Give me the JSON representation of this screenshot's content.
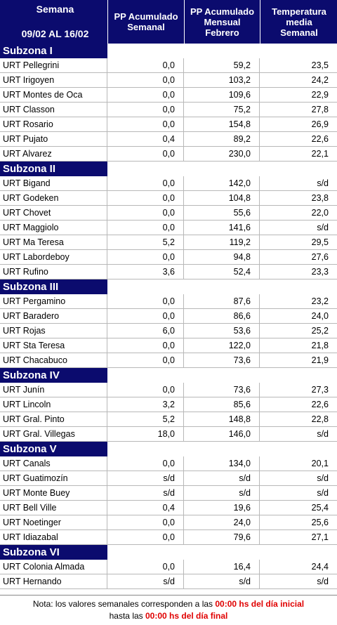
{
  "header": {
    "semana_label": "Semana",
    "semana_range": "09/02 AL 16/02",
    "col_pp_semanal": "PP Acumulado\nSemanal",
    "col_pp_mensual": "PP Acumulado\nMensual\nFebrero",
    "col_temp": "Temperatura\nmedia\nSemanal"
  },
  "zones": [
    {
      "name": "Subzona I",
      "rows": [
        {
          "urt": "URT Pellegrini",
          "pp_sem": "0,0",
          "pp_mes": "59,2",
          "temp": "23,5"
        },
        {
          "urt": "URT Irigoyen",
          "pp_sem": "0,0",
          "pp_mes": "103,2",
          "temp": "24,2"
        },
        {
          "urt": "URT Montes de Oca",
          "pp_sem": "0,0",
          "pp_mes": "109,6",
          "temp": "22,9"
        },
        {
          "urt": "URT Classon",
          "pp_sem": "0,0",
          "pp_mes": "75,2",
          "temp": "27,8"
        },
        {
          "urt": "URT Rosario",
          "pp_sem": "0,0",
          "pp_mes": "154,8",
          "temp": "26,9"
        },
        {
          "urt": "URT Pujato",
          "pp_sem": "0,4",
          "pp_mes": "89,2",
          "temp": "22,6"
        },
        {
          "urt": "URT Alvarez",
          "pp_sem": "0,0",
          "pp_mes": "230,0",
          "temp": "22,1"
        }
      ]
    },
    {
      "name": "Subzona II",
      "rows": [
        {
          "urt": "URT Bigand",
          "pp_sem": "0,0",
          "pp_mes": "142,0",
          "temp": "s/d"
        },
        {
          "urt": "URT Godeken",
          "pp_sem": "0,0",
          "pp_mes": "104,8",
          "temp": "23,8"
        },
        {
          "urt": "URT Chovet",
          "pp_sem": "0,0",
          "pp_mes": "55,6",
          "temp": "22,0"
        },
        {
          "urt": "URT Maggiolo",
          "pp_sem": "0,0",
          "pp_mes": "141,6",
          "temp": "s/d"
        },
        {
          "urt": "URT Ma Teresa",
          "pp_sem": "5,2",
          "pp_mes": "119,2",
          "temp": "29,5"
        },
        {
          "urt": "URT Labordeboy",
          "pp_sem": "0,0",
          "pp_mes": "94,8",
          "temp": "27,6"
        },
        {
          "urt": "URT Rufino",
          "pp_sem": "3,6",
          "pp_mes": "52,4",
          "temp": "23,3"
        }
      ]
    },
    {
      "name": "Subzona III",
      "rows": [
        {
          "urt": "URT Pergamino",
          "pp_sem": "0,0",
          "pp_mes": "87,6",
          "temp": "23,2"
        },
        {
          "urt": "URT Baradero",
          "pp_sem": "0,0",
          "pp_mes": "86,6",
          "temp": "24,0"
        },
        {
          "urt": "URT Rojas",
          "pp_sem": "6,0",
          "pp_mes": "53,6",
          "temp": "25,2"
        },
        {
          "urt": "URT Sta Teresa",
          "pp_sem": "0,0",
          "pp_mes": "122,0",
          "temp": "21,8"
        },
        {
          "urt": "URT Chacabuco",
          "pp_sem": "0,0",
          "pp_mes": "73,6",
          "temp": "21,9"
        }
      ]
    },
    {
      "name": "Subzona IV",
      "rows": [
        {
          "urt": "URT Junín",
          "pp_sem": "0,0",
          "pp_mes": "73,6",
          "temp": "27,3"
        },
        {
          "urt": "URT Lincoln",
          "pp_sem": "3,2",
          "pp_mes": "85,6",
          "temp": "22,6"
        },
        {
          "urt": "URT Gral. Pinto",
          "pp_sem": "5,2",
          "pp_mes": "148,8",
          "temp": "22,8"
        },
        {
          "urt": "URT Gral. Villegas",
          "pp_sem": "18,0",
          "pp_mes": "146,0",
          "temp": "s/d"
        }
      ]
    },
    {
      "name": "Subzona V",
      "rows": [
        {
          "urt": "URT Canals",
          "pp_sem": "0,0",
          "pp_mes": "134,0",
          "temp": "20,1"
        },
        {
          "urt": "URT Guatimozín",
          "pp_sem": "s/d",
          "pp_mes": "s/d",
          "temp": "s/d"
        },
        {
          "urt": "URT Monte Buey",
          "pp_sem": "s/d",
          "pp_mes": "s/d",
          "temp": "s/d"
        },
        {
          "urt": "URT Bell Ville",
          "pp_sem": "0,4",
          "pp_mes": "19,6",
          "temp": "25,4"
        },
        {
          "urt": "URT Noetinger",
          "pp_sem": "0,0",
          "pp_mes": "24,0",
          "temp": "25,6"
        },
        {
          "urt": "URT Idiazabal",
          "pp_sem": "0,0",
          "pp_mes": "79,6",
          "temp": "27,1"
        }
      ]
    },
    {
      "name": "Subzona VI",
      "rows": [
        {
          "urt": "URT Colonia Almada",
          "pp_sem": "0,0",
          "pp_mes": "16,4",
          "temp": "24,4"
        },
        {
          "urt": "URT Hernando",
          "pp_sem": "s/d",
          "pp_mes": "s/d",
          "temp": "s/d"
        }
      ]
    }
  ],
  "note": {
    "part1": "Nota: los valores semanales corresponden a las ",
    "time1": "00:00 hs del día inicial",
    "part2": "hasta las ",
    "time2": "00:00 hs del día final"
  },
  "colors": {
    "header_bg": "#0b0b6e",
    "note_highlight": "#e00000"
  }
}
